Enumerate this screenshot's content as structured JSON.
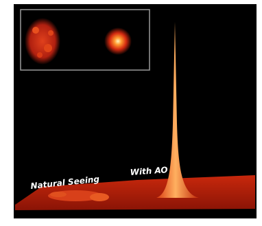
{
  "labels": {
    "natural": "Natural Seeing",
    "ao": "With AO"
  }
}
